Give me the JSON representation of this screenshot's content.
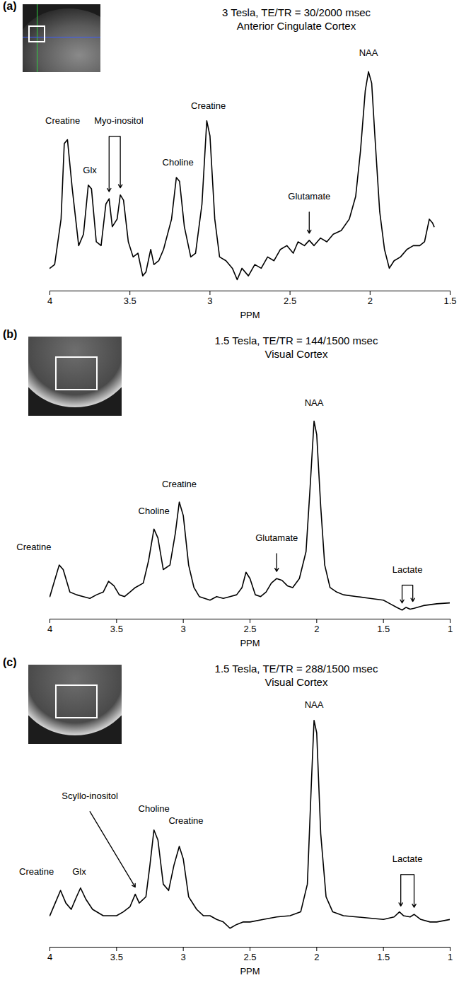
{
  "chart_data": [
    {
      "type": "line",
      "panel_label": "(a)",
      "title": "3 Tesla, TE/TR = 30/2000 msec",
      "subtitle": "Anterior Cingulate Cortex",
      "x_label": "PPM",
      "xlim": [
        4,
        1.5
      ],
      "xticks": [
        4,
        3.5,
        3,
        2.5,
        2,
        1.5
      ],
      "ylim": [
        -15,
        360
      ],
      "tick_labels": "x",
      "x": [
        4.0,
        3.97,
        3.93,
        3.91,
        3.89,
        3.86,
        3.82,
        3.79,
        3.76,
        3.74,
        3.71,
        3.68,
        3.65,
        3.63,
        3.61,
        3.58,
        3.56,
        3.54,
        3.51,
        3.48,
        3.45,
        3.42,
        3.4,
        3.37,
        3.35,
        3.32,
        3.29,
        3.24,
        3.21,
        3.19,
        3.16,
        3.12,
        3.09,
        3.05,
        3.02,
        3.0,
        2.97,
        2.94,
        2.9,
        2.86,
        2.83,
        2.8,
        2.76,
        2.72,
        2.68,
        2.64,
        2.6,
        2.56,
        2.52,
        2.48,
        2.45,
        2.41,
        2.38,
        2.35,
        2.31,
        2.27,
        2.23,
        2.18,
        2.13,
        2.09,
        2.06,
        2.03,
        2.01,
        1.99,
        1.97,
        1.94,
        1.91,
        1.88,
        1.85,
        1.81,
        1.77,
        1.73,
        1.69,
        1.66,
        1.63,
        1.61,
        1.6
      ],
      "series": [
        {
          "color": "#000000",
          "values": [
            15,
            20,
            80,
            180,
            185,
            120,
            45,
            60,
            125,
            120,
            50,
            45,
            100,
            107,
            70,
            80,
            112,
            105,
            50,
            30,
            35,
            5,
            10,
            40,
            20,
            25,
            40,
            80,
            135,
            130,
            70,
            30,
            35,
            100,
            210,
            190,
            80,
            30,
            25,
            15,
            0,
            15,
            5,
            20,
            15,
            30,
            25,
            40,
            45,
            35,
            50,
            45,
            52,
            45,
            55,
            50,
            60,
            65,
            80,
            110,
            170,
            250,
            275,
            260,
            190,
            90,
            40,
            15,
            25,
            30,
            40,
            45,
            45,
            50,
            80,
            75,
            70
          ]
        }
      ],
      "annotations": [
        {
          "text": "Creatine",
          "x": 3.92,
          "y": 210
        },
        {
          "text": "Glx",
          "x": 3.75,
          "y": 145
        },
        {
          "text": "Myo-inositol",
          "x": 3.57,
          "y": 210,
          "points_to": [
            3.63,
            3.56
          ]
        },
        {
          "text": "Choline",
          "x": 3.2,
          "y": 155
        },
        {
          "text": "Creatine",
          "x": 3.01,
          "y": 230
        },
        {
          "text": "Glutamate",
          "x": 2.38,
          "y": 110,
          "points_to": [
            2.38
          ]
        },
        {
          "text": "NAA",
          "x": 2.01,
          "y": 300
        }
      ]
    },
    {
      "type": "line",
      "panel_label": "(b)",
      "title": "1.5 Tesla, TE/TR = 144/1500 msec",
      "subtitle": "Visual Cortex",
      "x_label": "PPM",
      "xlim": [
        4,
        1
      ],
      "xticks": [
        4,
        3.5,
        3,
        2.5,
        2,
        1.5,
        1
      ],
      "ylim": [
        -15,
        300
      ],
      "tick_labels": "x",
      "x": [
        4.0,
        3.97,
        3.93,
        3.9,
        3.85,
        3.8,
        3.75,
        3.7,
        3.65,
        3.6,
        3.56,
        3.52,
        3.48,
        3.44,
        3.4,
        3.36,
        3.3,
        3.26,
        3.22,
        3.19,
        3.15,
        3.1,
        3.06,
        3.03,
        3.0,
        2.96,
        2.92,
        2.88,
        2.84,
        2.8,
        2.75,
        2.7,
        2.65,
        2.6,
        2.56,
        2.53,
        2.5,
        2.46,
        2.42,
        2.38,
        2.34,
        2.3,
        2.26,
        2.22,
        2.18,
        2.13,
        2.08,
        2.05,
        2.02,
        2.0,
        1.97,
        1.94,
        1.9,
        1.85,
        1.8,
        1.7,
        1.6,
        1.5,
        1.45,
        1.4,
        1.36,
        1.33,
        1.3,
        1.27,
        1.2,
        1.1,
        1.0
      ],
      "series": [
        {
          "color": "#000000",
          "values": [
            10,
            25,
            45,
            40,
            15,
            12,
            10,
            8,
            12,
            15,
            27,
            22,
            12,
            10,
            15,
            20,
            25,
            50,
            85,
            75,
            40,
            45,
            80,
            115,
            100,
            45,
            20,
            10,
            8,
            6,
            10,
            8,
            10,
            12,
            20,
            37,
            30,
            12,
            10,
            15,
            25,
            30,
            28,
            22,
            20,
            30,
            60,
            130,
            205,
            190,
            110,
            45,
            20,
            15,
            12,
            10,
            8,
            6,
            2,
            -2,
            -5,
            -2,
            -4,
            -3,
            0,
            2,
            3
          ]
        }
      ],
      "annotations": [
        {
          "text": "Creatine",
          "x": 4.12,
          "y": 65
        },
        {
          "text": "Choline",
          "x": 3.22,
          "y": 105
        },
        {
          "text": "Creatine",
          "x": 3.03,
          "y": 135
        },
        {
          "text": "Glutamate",
          "x": 2.3,
          "y": 75,
          "points_to": [
            2.3
          ]
        },
        {
          "text": "NAA",
          "x": 2.02,
          "y": 225
        },
        {
          "text": "Lactate",
          "x": 1.32,
          "y": 40,
          "points_to": [
            1.36,
            1.28
          ]
        }
      ]
    },
    {
      "type": "line",
      "panel_label": "(c)",
      "title": "1.5 Tesla, TE/TR = 288/1500 msec",
      "subtitle": "Visual Cortex",
      "x_label": "PPM",
      "xlim": [
        4,
        1
      ],
      "xticks": [
        4,
        3.5,
        3,
        2.5,
        2,
        1.5,
        1
      ],
      "ylim": [
        -10,
        215
      ],
      "tick_labels": "x",
      "x": [
        4.0,
        3.96,
        3.92,
        3.88,
        3.84,
        3.8,
        3.77,
        3.73,
        3.68,
        3.6,
        3.5,
        3.45,
        3.4,
        3.36,
        3.33,
        3.28,
        3.25,
        3.22,
        3.19,
        3.15,
        3.11,
        3.07,
        3.03,
        3.0,
        2.96,
        2.9,
        2.85,
        2.8,
        2.75,
        2.7,
        2.65,
        2.6,
        2.55,
        2.5,
        2.4,
        2.3,
        2.2,
        2.12,
        2.07,
        2.04,
        2.02,
        2.0,
        1.97,
        1.93,
        1.88,
        1.8,
        1.7,
        1.6,
        1.5,
        1.42,
        1.38,
        1.35,
        1.3,
        1.27,
        1.22,
        1.15,
        1.1,
        1.0
      ],
      "series": [
        {
          "color": "#000000",
          "values": [
            15,
            25,
            35,
            25,
            20,
            30,
            37,
            28,
            20,
            15,
            15,
            18,
            22,
            32,
            25,
            30,
            55,
            83,
            75,
            40,
            35,
            55,
            70,
            60,
            30,
            20,
            15,
            15,
            12,
            10,
            5,
            8,
            10,
            10,
            12,
            14,
            15,
            18,
            40,
            120,
            170,
            160,
            80,
            30,
            18,
            15,
            14,
            13,
            12,
            14,
            18,
            15,
            14,
            16,
            12,
            10,
            10,
            12
          ]
        }
      ],
      "annotations": [
        {
          "text": "Creatine",
          "x": 4.1,
          "y": 50
        },
        {
          "text": "Glx",
          "x": 3.78,
          "y": 50
        },
        {
          "text": "Scyllo-inositol",
          "x": 3.7,
          "y": 110,
          "points_to": [
            3.36
          ]
        },
        {
          "text": "Choline",
          "x": 3.22,
          "y": 100
        },
        {
          "text": "Creatine",
          "x": 2.98,
          "y": 90
        },
        {
          "text": "NAA",
          "x": 2.02,
          "y": 182
        },
        {
          "text": "Lactate",
          "x": 1.32,
          "y": 60,
          "points_to": [
            1.37,
            1.27
          ]
        }
      ]
    }
  ]
}
